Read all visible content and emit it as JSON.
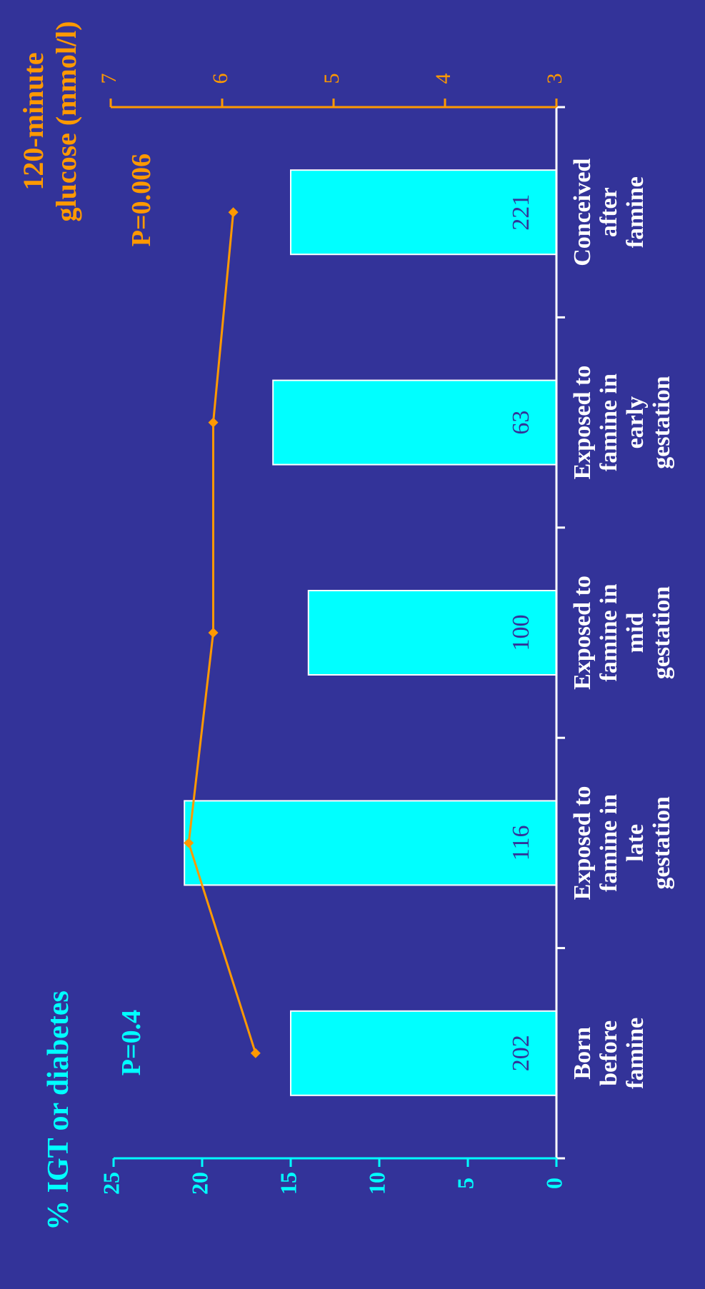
{
  "chart_data": {
    "type": "bar",
    "orientation": "rotated-90-counterclockwise",
    "categories": [
      [
        "Born",
        "before",
        "famine"
      ],
      [
        "Exposed to",
        "famine in",
        "late",
        "gestation"
      ],
      [
        "Exposed to",
        "famine in",
        "mid",
        "gestation"
      ],
      [
        "Exposed to",
        "famine in",
        "early",
        "gestation"
      ],
      [
        "Conceived",
        "after",
        "famine"
      ]
    ],
    "bar_series": {
      "values": [
        15,
        21,
        14,
        16,
        15
      ],
      "counts": [
        "202",
        "116",
        "100",
        "63",
        "221"
      ],
      "color": "#00ffff",
      "axis_label": "% IGT or diabetes",
      "ylim": [
        0,
        25
      ],
      "ticks": [
        "0",
        "5",
        "10",
        "15",
        "20",
        "25"
      ],
      "p_value": "P=0.4"
    },
    "line_series": {
      "values": [
        5.7,
        6.3,
        6.08,
        6.08,
        5.9
      ],
      "color": "#ff9900",
      "axis_label": [
        "120-minute",
        "glucose (mmol/l)"
      ],
      "ylim": [
        3,
        7
      ],
      "ticks": [
        "3",
        "4",
        "5",
        "6",
        "7"
      ],
      "p_value": "P=0.006"
    },
    "background": "#333399",
    "axis_color": "#ffffff",
    "grid": false
  }
}
